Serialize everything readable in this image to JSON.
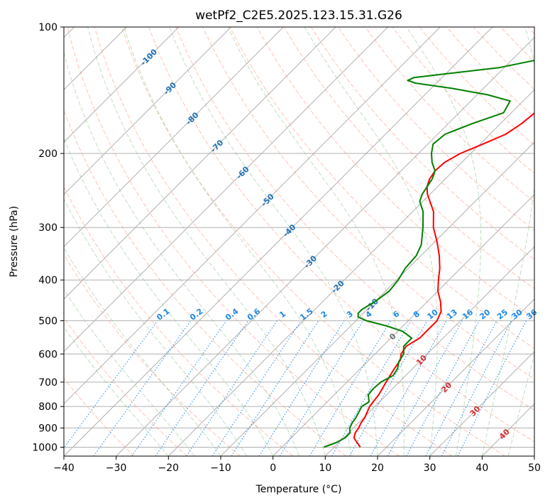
{
  "title": "wetPf2_C2E5.2025.123.15.31.G26",
  "colors": {
    "temperature": "#ff0000",
    "dewpoint": "#008000",
    "isotherm": "#7f7f7f",
    "dry_adiabat": "#ff8a65",
    "moist_adiabat": "#7fbf7f",
    "mixing_ratio": "#1e88e5",
    "isotherm_label": "#1f6fb4",
    "moist_label": "#d32f2f",
    "mixing_label": "#1e88e5",
    "zero_label": "#6d6d6d",
    "grid": "#b0b0b0"
  },
  "chart_data": {
    "type": "line",
    "subtype": "skew-t log-p",
    "title": "wetPf2_C2E5.2025.123.15.31.G26",
    "xlabel": "Temperature (°C)",
    "ylabel": "Pressure (hPa)",
    "xlim": [
      -40,
      50
    ],
    "ylim": [
      1050,
      100
    ],
    "y_scale": "log",
    "grid": true,
    "x_ticks": [
      -40,
      -30,
      -20,
      -10,
      0,
      10,
      20,
      30,
      40,
      50
    ],
    "y_ticks": [
      100,
      200,
      300,
      400,
      500,
      600,
      700,
      800,
      900,
      1000
    ],
    "series": [
      {
        "key": "temperature",
        "color": "#ff0000",
        "pressure": [
          1000,
          975,
          950,
          925,
          900,
          875,
          850,
          800,
          750,
          700,
          650,
          620,
          600,
          575,
          550,
          500,
          475,
          450,
          425,
          400,
          375,
          350,
          325,
          300,
          275,
          250,
          240,
          230,
          220,
          210,
          200,
          190,
          180,
          170,
          160,
          150,
          140,
          130,
          125,
          120,
          115,
          110,
          105,
          100
        ],
        "temp": [
          15,
          13.5,
          12,
          11.3,
          11,
          10.5,
          10.2,
          9,
          8.5,
          7.5,
          6.5,
          6,
          5,
          4.5,
          5.5,
          5.5,
          4.5,
          2.5,
          0,
          -2,
          -4,
          -6.5,
          -9.5,
          -13,
          -16,
          -20.5,
          -22,
          -23,
          -23.5,
          -23.3,
          -22,
          -19.5,
          -17,
          -16,
          -15.5,
          -15.5,
          -16,
          -17,
          -17.5,
          -17.6,
          -17.2,
          -16.5,
          -15.5,
          -14.5
        ]
      },
      {
        "key": "dewpoint",
        "color": "#008000",
        "pressure": [
          1000,
          975,
          950,
          925,
          900,
          875,
          850,
          800,
          780,
          750,
          725,
          700,
          675,
          650,
          625,
          600,
          575,
          550,
          530,
          515,
          500,
          490,
          480,
          470,
          450,
          425,
          400,
          375,
          350,
          330,
          300,
          275,
          260,
          250,
          240,
          230,
          220,
          210,
          200,
          190,
          180,
          170,
          160,
          150,
          145,
          140,
          136,
          134,
          132,
          130,
          125,
          120,
          115,
          110,
          105,
          100
        ],
        "dewp": [
          8,
          9.5,
          10.3,
          10.3,
          9.3,
          8.8,
          8.5,
          7.5,
          8,
          6.5,
          6.3,
          6.5,
          7.6,
          7.1,
          6,
          5.5,
          4,
          4,
          1,
          -3,
          -8,
          -10.3,
          -11,
          -11,
          -10,
          -9.3,
          -9.7,
          -10.6,
          -10.9,
          -12,
          -15,
          -18,
          -20.6,
          -21.5,
          -22,
          -22.5,
          -23.5,
          -25.7,
          -27.5,
          -29,
          -28.6,
          -25.5,
          -21.5,
          -22.5,
          -28,
          -36,
          -44,
          -46,
          -45.4,
          -41.5,
          -31,
          -25.5,
          -21.6,
          -20.4,
          -19.3,
          -18.5
        ]
      }
    ],
    "isotherm_labels": [
      -100,
      -90,
      -80,
      -70,
      -60,
      -50,
      -40,
      -30,
      -20,
      -10,
      0
    ],
    "mixing_ratio_values": [
      0.1,
      0.2,
      0.4,
      0.6,
      1,
      1.5,
      2,
      3,
      4,
      6,
      8,
      10,
      13,
      16,
      20,
      25,
      30,
      36
    ],
    "mixing_ratio_labels": [
      "0.1",
      "0.2",
      "0.4",
      "0.6",
      "1",
      "1.5",
      "2",
      "3",
      "4",
      "6",
      "8",
      "10",
      "13",
      "16",
      "20",
      "25",
      "30",
      "36"
    ],
    "moist_adiabat_labels": [
      "10",
      "20",
      "30",
      "40"
    ]
  }
}
